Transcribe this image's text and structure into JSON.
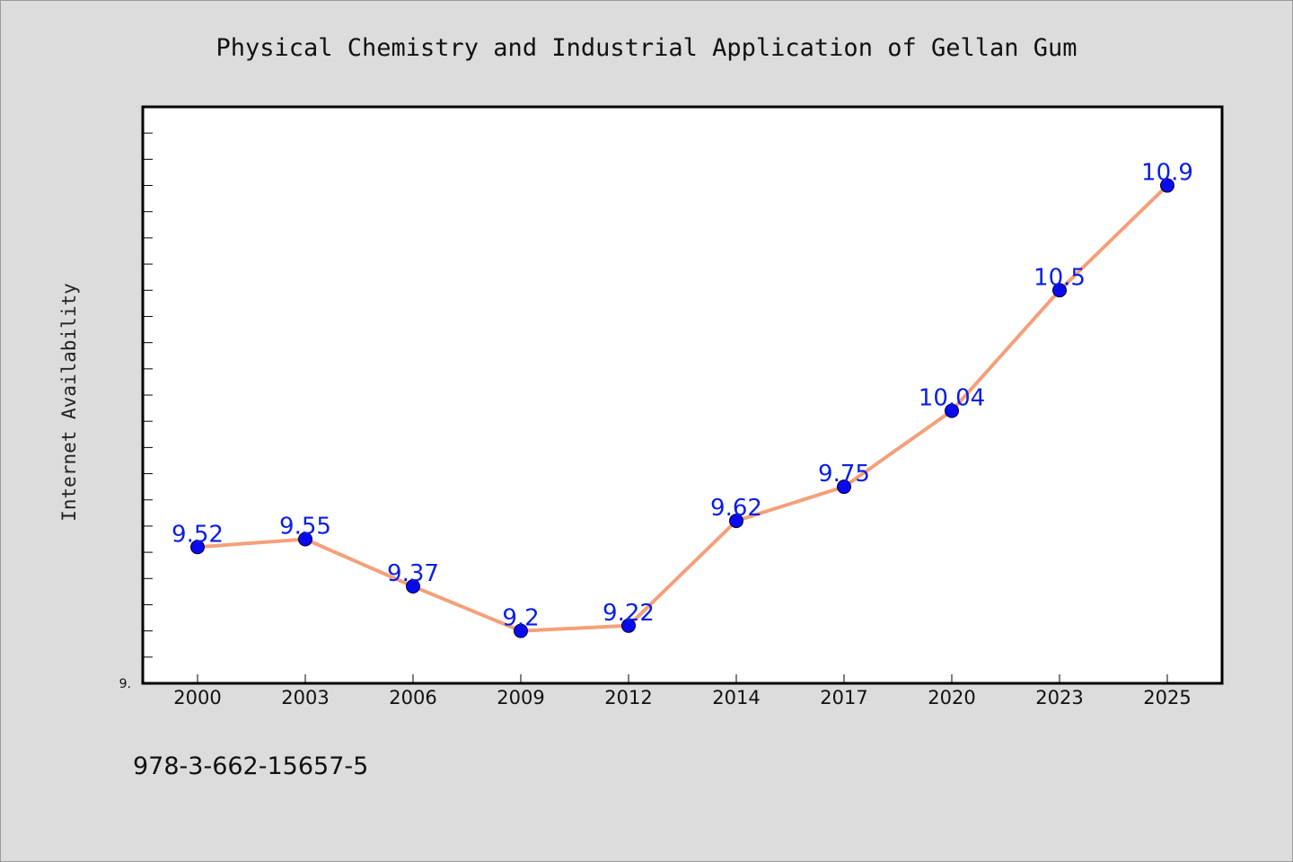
{
  "chart_data": {
    "type": "line",
    "title": "Physical Chemistry and Industrial Application of Gellan Gum",
    "xlabel": "",
    "ylabel": "Internet Availability",
    "categories": [
      "2000",
      "2003",
      "2006",
      "2009",
      "2012",
      "2014",
      "2017",
      "2020",
      "2023",
      "2025"
    ],
    "series": [
      {
        "values": [
          9.52,
          9.55,
          9.37,
          9.2,
          9.22,
          9.62,
          9.75,
          10.04,
          10.5,
          10.9
        ],
        "labels": [
          "9.52",
          "9.55",
          "9.37",
          "9.2",
          "9.22",
          "9.62",
          "9.75",
          "10.04",
          "10.5",
          "10.9"
        ]
      }
    ],
    "ylim": [
      9.0,
      11.2
    ],
    "y_tick_label": "9.",
    "grid": false,
    "line_color": "#f4a07a",
    "marker_color": "#0a0aee",
    "label_color": "#0a1ee8"
  },
  "footer": {
    "isbn": "978-3-662-15657-5"
  }
}
